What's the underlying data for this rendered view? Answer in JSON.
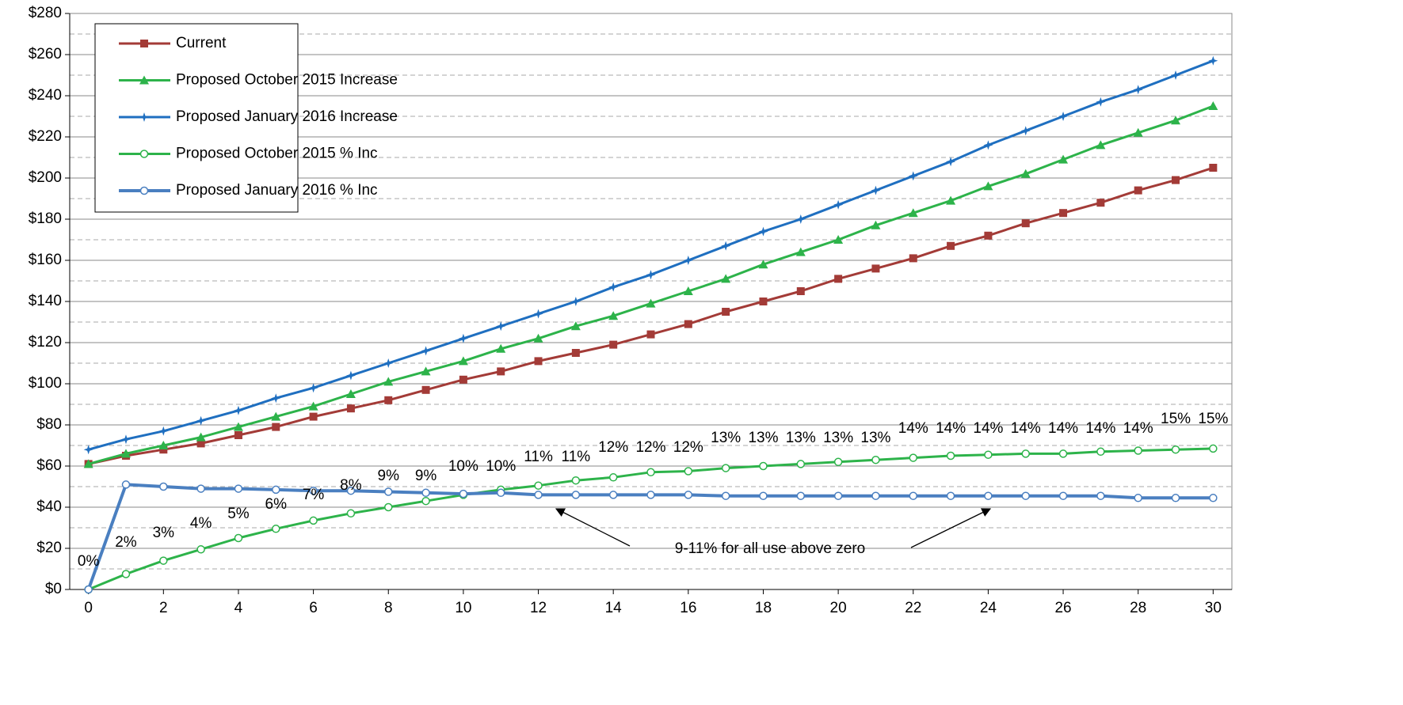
{
  "chart_data": {
    "type": "line",
    "x": [
      0,
      1,
      2,
      3,
      4,
      5,
      6,
      7,
      8,
      9,
      10,
      11,
      12,
      13,
      14,
      15,
      16,
      17,
      18,
      19,
      20,
      21,
      22,
      23,
      24,
      25,
      26,
      27,
      28,
      29,
      30
    ],
    "xlim": [
      -0.5,
      30.5
    ],
    "xticks": [
      0,
      2,
      4,
      6,
      8,
      10,
      12,
      14,
      16,
      18,
      20,
      22,
      24,
      26,
      28,
      30
    ],
    "ylim": [
      0,
      280
    ],
    "yticks": [
      {
        "value": 0,
        "label": "$0"
      },
      {
        "value": 20,
        "label": "$20"
      },
      {
        "value": 40,
        "label": "$40"
      },
      {
        "value": 60,
        "label": "$60"
      },
      {
        "value": 80,
        "label": "$80"
      },
      {
        "value": 100,
        "label": "$100"
      },
      {
        "value": 120,
        "label": "$120"
      },
      {
        "value": 140,
        "label": "$140"
      },
      {
        "value": 160,
        "label": "$160"
      },
      {
        "value": 180,
        "label": "$180"
      },
      {
        "value": 200,
        "label": "$200"
      },
      {
        "value": 220,
        "label": "$220"
      },
      {
        "value": 240,
        "label": "$240"
      },
      {
        "value": 260,
        "label": "$260"
      },
      {
        "value": 280,
        "label": "$280"
      }
    ],
    "minor_yticks": [
      10,
      30,
      50,
      70,
      90,
      110,
      130,
      150,
      170,
      190,
      210,
      230,
      250,
      270
    ],
    "grid": true,
    "legend": "upper left",
    "series": [
      {
        "name": "Current",
        "color": "#a33b37",
        "marker": "square",
        "values": [
          61,
          65,
          68,
          71,
          75,
          79,
          84,
          88,
          92,
          97,
          102,
          106,
          111,
          115,
          119,
          124,
          129,
          135,
          140,
          145,
          151,
          156,
          161,
          167,
          172,
          178,
          183,
          188,
          194,
          199,
          205
        ]
      },
      {
        "name": "Proposed October 2015 Increase",
        "color": "#2db34a",
        "marker": "triangle",
        "values": [
          61,
          66,
          70,
          74,
          79,
          84,
          89,
          95,
          101,
          106,
          111,
          117,
          122,
          128,
          133,
          139,
          145,
          151,
          158,
          164,
          170,
          177,
          183,
          189,
          196,
          202,
          209,
          216,
          222,
          228,
          235
        ]
      },
      {
        "name": "Proposed January 2016 Increase",
        "color": "#1f6fc0",
        "marker": "star",
        "values": [
          68,
          73,
          77,
          82,
          87,
          93,
          98,
          104,
          110,
          116,
          122,
          128,
          134,
          140,
          147,
          153,
          160,
          167,
          174,
          180,
          187,
          194,
          201,
          208,
          216,
          223,
          230,
          237,
          243,
          250,
          257
        ]
      },
      {
        "name": "Proposed October 2015 % Inc",
        "color": "#2db34a",
        "marker": "circle",
        "values": [
          0,
          7.5,
          14,
          19.5,
          25,
          29.5,
          33.5,
          37,
          40,
          43,
          46,
          48.5,
          50.5,
          53,
          54.5,
          57,
          57.5,
          59,
          60,
          61,
          62,
          63,
          64,
          65,
          65.5,
          66,
          66,
          67,
          67.5,
          68,
          68.5
        ]
      },
      {
        "name": "Proposed January 2016 % Inc",
        "color": "#4a7fc0",
        "marker": "circle",
        "values": [
          0,
          51,
          50,
          49,
          49,
          48.5,
          48,
          48,
          47.5,
          47,
          46.5,
          47,
          46,
          46,
          46,
          46,
          46,
          45.5,
          45.5,
          45.5,
          45.5,
          45.5,
          45.5,
          45.5,
          45.5,
          45.5,
          45.5,
          45.5,
          44.5,
          44.5,
          44.5
        ]
      }
    ],
    "percent_labels": {
      "values": [
        0,
        2,
        3,
        4,
        5,
        6,
        7,
        8,
        9,
        9,
        10,
        10,
        11,
        11,
        12,
        12,
        12,
        13,
        13,
        13,
        13,
        13,
        14,
        14,
        14,
        14,
        14,
        14,
        14,
        15,
        15
      ],
      "value_labels": [
        "0%",
        "2%",
        "3%",
        "4%",
        "5%",
        "6%",
        "7%",
        "8%",
        "9%",
        "9%",
        "10%",
        "10%",
        "11%",
        "11%",
        "12%",
        "12%",
        "12%",
        "13%",
        "13%",
        "13%",
        "13%",
        "13%",
        "14%",
        "14%",
        "14%",
        "14%",
        "14%",
        "14%",
        "14%",
        "15%",
        "15%"
      ]
    },
    "annotation": "9-11% for all use above zero"
  }
}
